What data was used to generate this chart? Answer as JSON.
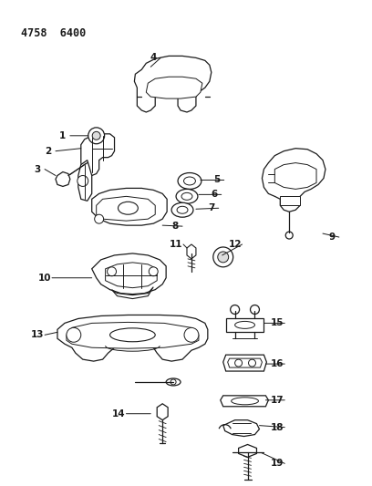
{
  "title": "4758  6400",
  "background_color": "#ffffff",
  "line_color": "#1a1a1a",
  "fig_width": 4.08,
  "fig_height": 5.33,
  "dpi": 100
}
